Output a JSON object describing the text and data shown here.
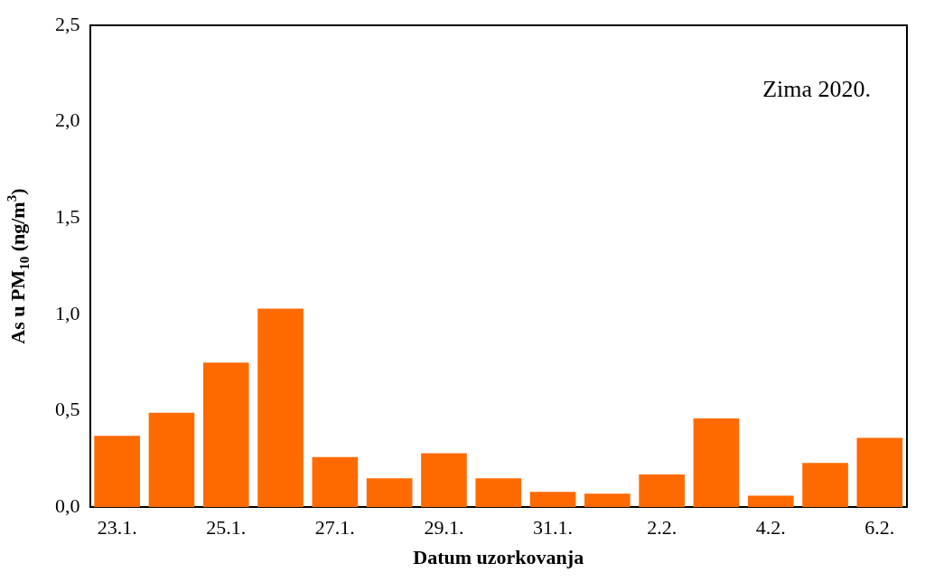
{
  "chart_data": {
    "type": "bar",
    "categories": [
      "23.1.",
      null,
      "25.1.",
      null,
      "27.1.",
      null,
      "29.1.",
      null,
      "31.1.",
      null,
      "2.2.",
      null,
      "4.2.",
      null,
      "6.2."
    ],
    "values": [
      0.37,
      0.49,
      0.75,
      1.03,
      0.26,
      0.15,
      0.28,
      0.15,
      0.08,
      0.07,
      0.17,
      0.46,
      0.06,
      0.23,
      0.36
    ],
    "color": "#ff6a00",
    "xlabel": "Datum uzorkovanja",
    "ylabel": "As u PM$_{10}$ (ng/m$^{3}$)",
    "ylim": [
      0,
      2.5
    ],
    "yticks": [
      {
        "value": 0,
        "label": "0,0"
      },
      {
        "value": 0.5,
        "label": "0,5"
      },
      {
        "value": 1,
        "label": "1,0"
      },
      {
        "value": 1.5,
        "label": "1,5"
      },
      {
        "value": 2,
        "label": "2,0"
      },
      {
        "value": 2.5,
        "label": "2,5"
      }
    ],
    "annotations": [
      "Zima 2020."
    ],
    "grid": false,
    "legend": false
  }
}
